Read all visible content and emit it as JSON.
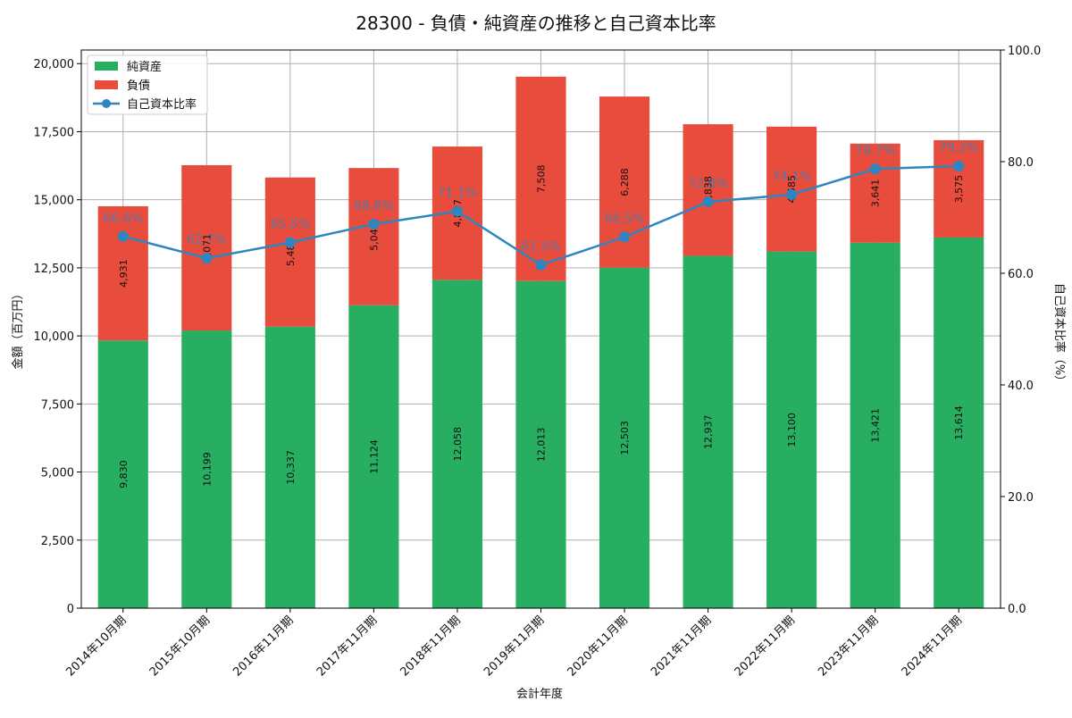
{
  "chart_data": {
    "type": "bar",
    "title": "28300 - 負債・純資産の推移と自己資本比率",
    "xlabel": "会計年度",
    "ylabel_left": "金額（百万円）",
    "ylabel_right": "自己資本比率（%）",
    "ylim_left": [
      0,
      20500
    ],
    "ylim_right": [
      0,
      100
    ],
    "yticks_left": [
      0,
      2500,
      5000,
      7500,
      10000,
      12500,
      15000,
      17500,
      20000
    ],
    "ytick_labels_left": [
      "0",
      "2,500",
      "5,000",
      "7,500",
      "10,000",
      "12,500",
      "15,000",
      "17,500",
      "20,000"
    ],
    "yticks_right": [
      0,
      20,
      40,
      60,
      80,
      100
    ],
    "ytick_labels_right": [
      "0.0",
      "20.0",
      "40.0",
      "60.0",
      "80.0",
      "100.0"
    ],
    "grid": true,
    "legend_position": "top-left",
    "categories": [
      "2014年10月期",
      "2015年10月期",
      "2016年11月期",
      "2017年11月期",
      "2018年11月期",
      "2019年11月期",
      "2020年11月期",
      "2021年11月期",
      "2022年11月期",
      "2023年11月期",
      "2024年11月期"
    ],
    "series": [
      {
        "name": "純資産",
        "kind": "bar-stacked",
        "color": "#27ae60",
        "values": [
          9830,
          10199,
          10337,
          11124,
          12058,
          12013,
          12503,
          12937,
          13100,
          13421,
          13614
        ],
        "labels": [
          "9,830",
          "10,199",
          "10,337",
          "11,124",
          "12,058",
          "12,013",
          "12,503",
          "12,937",
          "13,100",
          "13,421",
          "13,614"
        ]
      },
      {
        "name": "負債",
        "kind": "bar-stacked",
        "color": "#e74c3c",
        "values": [
          4931,
          6071,
          5481,
          5041,
          4897,
          7508,
          6288,
          4838,
          4585,
          3641,
          3575
        ],
        "labels": [
          "4,931",
          "6,071",
          "5,481",
          "5,041",
          "4,897",
          "7,508",
          "6,288",
          "4,838",
          "4,585",
          "3,641",
          "3,575"
        ]
      },
      {
        "name": "自己資本比率",
        "kind": "line",
        "axis": "right",
        "color": "#2e86c1",
        "values": [
          66.6,
          62.7,
          65.5,
          68.8,
          71.1,
          61.5,
          66.5,
          72.8,
          74.1,
          78.7,
          79.2
        ],
        "labels": [
          "66.6%",
          "62.7%",
          "65.5%",
          "68.8%",
          "71.1%",
          "61.5%",
          "66.5%",
          "72.8%",
          "74.1%",
          "78.7%",
          "79.2%"
        ]
      }
    ]
  }
}
